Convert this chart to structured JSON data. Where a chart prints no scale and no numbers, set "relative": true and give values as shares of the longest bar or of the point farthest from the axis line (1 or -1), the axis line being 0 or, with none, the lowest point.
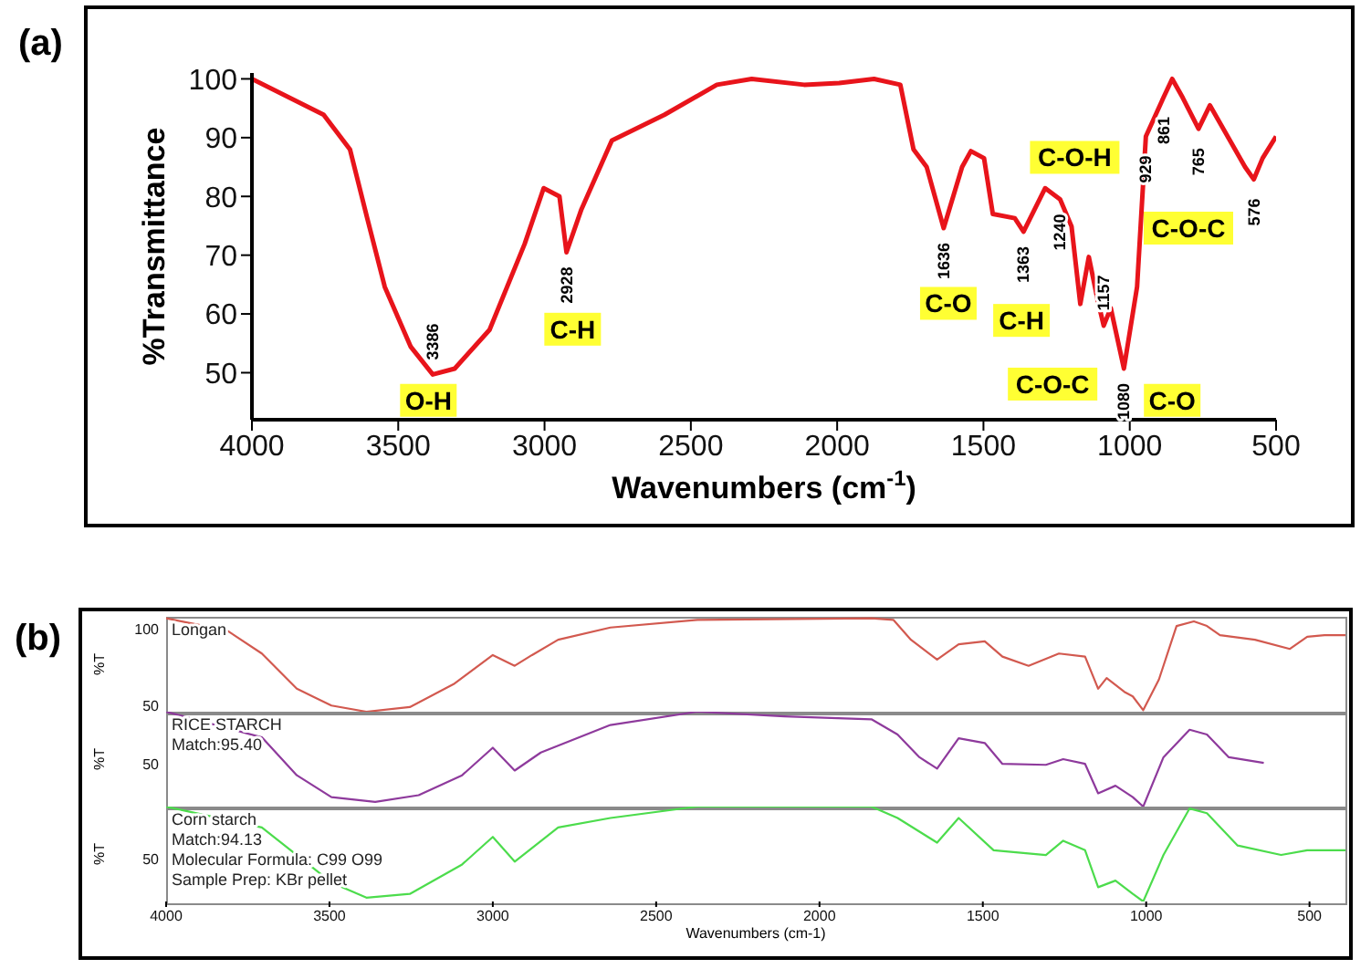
{
  "chart_data": [
    {
      "type": "line",
      "title": "(a)",
      "xlabel": "Wavenumbers (cm$^{-1}$)",
      "ylabel": "%Transmittance",
      "xlim": [
        4000,
        500
      ],
      "ylim": [
        42,
        101
      ],
      "xticks": [
        4000,
        3500,
        3000,
        2500,
        2000,
        1500,
        1000,
        500
      ],
      "yticks": [
        50,
        60,
        70,
        80,
        90,
        100
      ],
      "marker": "none",
      "color": "#e8141b",
      "x": [
        4000,
        3755,
        3665,
        3606,
        3546,
        3457,
        3382,
        3307,
        3188,
        3068,
        3003,
        2949,
        2925,
        2874,
        2770,
        2590,
        2411,
        2292,
        2113,
        1993,
        1874,
        1784,
        1739,
        1694,
        1636,
        1573,
        1543,
        1498,
        1468,
        1393,
        1363,
        1289,
        1238,
        1199,
        1169,
        1140,
        1110,
        1089,
        1065,
        1020,
        975,
        945,
        885,
        855,
        819,
        765,
        726,
        606,
        576,
        546,
        500
      ],
      "values": [
        100,
        93.9,
        88,
        76.3,
        64.6,
        54.4,
        49.7,
        50.7,
        57.3,
        71.9,
        81.4,
        80,
        70.5,
        77.8,
        89.5,
        93.9,
        99,
        100,
        99,
        99.3,
        100,
        99,
        88,
        85,
        74.6,
        85,
        87.7,
        86.5,
        77,
        76.3,
        74,
        81.4,
        79.5,
        74.9,
        61.7,
        69.7,
        62.4,
        58,
        61,
        50.7,
        64.6,
        90.2,
        96.8,
        100,
        96.8,
        91.5,
        95.5,
        85,
        82.9,
        86.5,
        90.2
      ],
      "annotations": [
        {
          "text": "3386",
          "x": 3382,
          "y": 49.7
        },
        {
          "text": "2928",
          "x": 2925,
          "y": 70.5
        },
        {
          "text": "1636",
          "x": 1636,
          "y": 74.6
        },
        {
          "text": "1363",
          "x": 1363,
          "y": 74
        },
        {
          "text": "1240",
          "x": 1238,
          "y": 79.5
        },
        {
          "text": "1157",
          "x": 1089,
          "y": 58
        },
        {
          "text": "1080",
          "x": 1020,
          "y": 50.7
        },
        {
          "text": "929",
          "x": 945,
          "y": 90.2
        },
        {
          "text": "861",
          "x": 885,
          "y": 96.8
        },
        {
          "text": "765",
          "x": 765,
          "y": 91.5
        },
        {
          "text": "576",
          "x": 576,
          "y": 82.9
        },
        {
          "text": "O-H",
          "x": 3397,
          "y": 45.3
        },
        {
          "text": "C-H",
          "x": 2904,
          "y": 57.4
        },
        {
          "text": "C-O",
          "x": 1620,
          "y": 61.8
        },
        {
          "text": "C-H",
          "x": 1370,
          "y": 58.9
        },
        {
          "text": "C-O-H",
          "x": 1238,
          "y": 79.5
        },
        {
          "text": "C-O-C",
          "x": 1089,
          "y": 58
        },
        {
          "text": "C-O",
          "x": 855,
          "y": 45.3
        },
        "C-O-C"
      ]
    },
    {
      "type": "line",
      "title": "(b)",
      "ylabel": "%T",
      "xlim": [
        4000,
        390
      ],
      "ylim": [
        46,
        108
      ],
      "xticks": [
        4000,
        3500,
        3000,
        2500,
        2000,
        1500,
        1000,
        500
      ],
      "yticks": [
        50,
        100
      ],
      "tick_labels": "y",
      "marker": "none",
      "color": "#d2594f",
      "x": [
        4000,
        3813,
        3707,
        3600,
        3494,
        3387,
        3254,
        3120,
        3000,
        2933,
        2880,
        2800,
        2640,
        2374,
        1841,
        1774,
        1720,
        1640,
        1574,
        1494,
        1440,
        1360,
        1267,
        1187,
        1147,
        1121,
        1067,
        1041,
        1009,
        961,
        907,
        854,
        814,
        774,
        667,
        560,
        507,
        454,
        390
      ],
      "values": [
        107,
        99,
        84,
        61,
        50,
        46,
        49,
        64,
        83,
        76,
        83,
        93,
        101,
        106,
        107,
        106,
        93,
        80,
        90,
        92,
        82,
        76,
        84,
        82,
        61,
        68,
        59,
        56,
        47,
        67,
        102,
        105,
        102,
        96,
        93,
        87,
        95,
        96,
        96
      ],
      "annotations": [
        "Longan"
      ]
    },
    {
      "type": "line",
      "relative": true,
      "ylabel": "%T",
      "xlim": [
        4000,
        390
      ],
      "xticks": [
        4000,
        3500,
        3000,
        2500,
        2000,
        1500,
        1000,
        500
      ],
      "tick_labels": "y",
      "marker": "none",
      "color": "#8e3a9c",
      "x": [
        4000,
        3707,
        3600,
        3494,
        3360,
        3227,
        3094,
        3000,
        2933,
        2853,
        2640,
        2374,
        2107,
        1841,
        1761,
        1694,
        1640,
        1574,
        1494,
        1440,
        1307,
        1254,
        1187,
        1147,
        1094,
        1041,
        1009,
        947,
        867,
        814,
        747,
        640
      ],
      "values": [
        1,
        0.73,
        0.33,
        0.1,
        0.05,
        0.12,
        0.33,
        0.62,
        0.38,
        0.57,
        0.86,
        1,
        0.95,
        0.92,
        0.76,
        0.52,
        0.4,
        0.72,
        0.67,
        0.45,
        0.44,
        0.5,
        0.45,
        0.14,
        0.22,
        0.1,
        0,
        0.52,
        0.81,
        0.76,
        0.52,
        0.46
      ],
      "annotations": [
        "RICE STARCH",
        "Match:95.40",
        "50"
      ]
    },
    {
      "type": "line",
      "relative": true,
      "ylabel": "%T",
      "xlabel": "Wavenumbers (cm-1)",
      "xlim": [
        4000,
        390
      ],
      "xticks": [
        4000,
        3500,
        3000,
        2500,
        2000,
        1500,
        1000,
        500
      ],
      "marker": "none",
      "color": "#4cdc4c",
      "x": [
        4000,
        3707,
        3600,
        3494,
        3387,
        3254,
        3094,
        3000,
        2933,
        2800,
        2640,
        2374,
        1841,
        1761,
        1640,
        1574,
        1467,
        1307,
        1254,
        1187,
        1147,
        1094,
        1041,
        1009,
        947,
        867,
        814,
        720,
        587,
        507,
        390
      ],
      "values": [
        1,
        0.78,
        0.49,
        0.2,
        0.04,
        0.08,
        0.39,
        0.68,
        0.42,
        0.78,
        0.88,
        1,
        1,
        0.88,
        0.62,
        0.88,
        0.54,
        0.49,
        0.64,
        0.54,
        0.15,
        0.22,
        0.08,
        0,
        0.49,
        0.98,
        0.93,
        0.59,
        0.49,
        0.54,
        0.54
      ],
      "annotations": [
        "Corn starch",
        "Match:94.13",
        "Molecular Formula:  C99 O99",
        "Sample Prep:  KBr pellet",
        "50"
      ]
    }
  ]
}
